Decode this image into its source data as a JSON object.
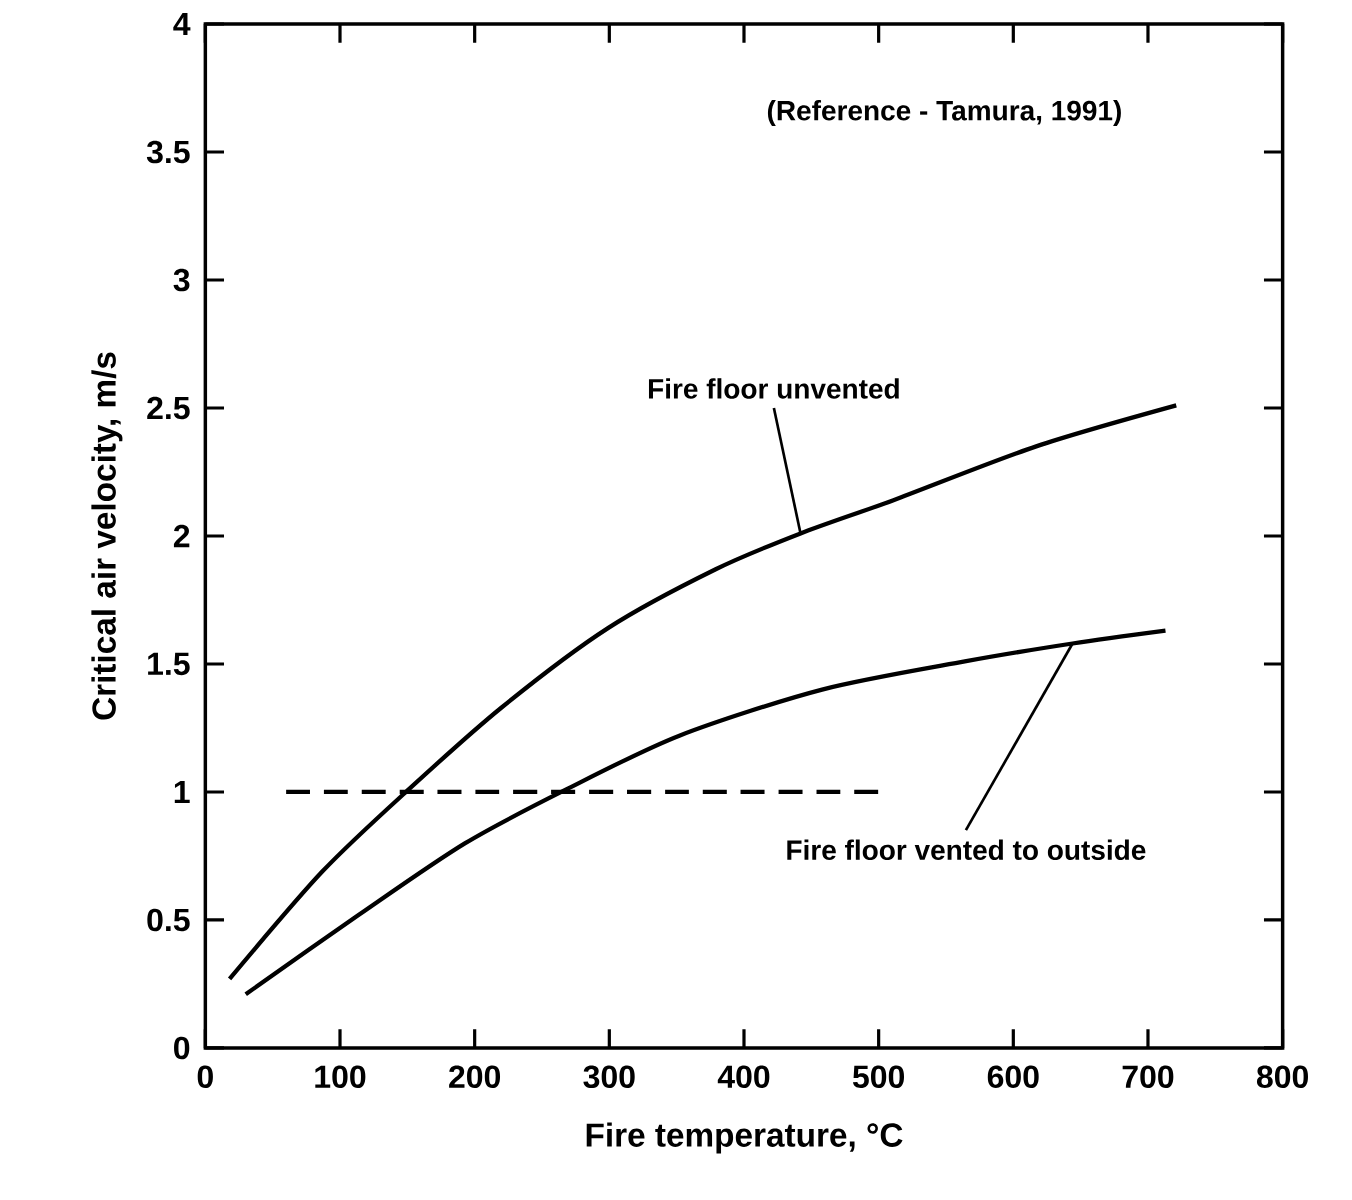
{
  "chart_data": {
    "type": "line",
    "xlabel": "Fire temperature, °C",
    "ylabel": "Critical air velocity, m/s",
    "xlim": [
      0,
      800
    ],
    "ylim": [
      0,
      4
    ],
    "xticks": [
      0,
      100,
      200,
      300,
      400,
      500,
      600,
      700,
      800
    ],
    "yticks": [
      0,
      0.5,
      1,
      1.5,
      2,
      2.5,
      3,
      3.5,
      4
    ],
    "grid": false,
    "marker": "none",
    "series": [
      {
        "color": "#000000",
        "line_style": "solid",
        "x": [
          18,
          87,
          151,
          220,
          299,
          379,
          442,
          511,
          617,
          721
        ],
        "values": [
          0.27,
          0.69,
          1.01,
          1.33,
          1.64,
          1.87,
          2.01,
          2.14,
          2.35,
          2.51
        ]
      },
      {
        "color": "#000000",
        "line_style": "solid",
        "x": [
          30,
          114,
          193,
          268,
          352,
          458,
          564,
          644,
          713
        ],
        "values": [
          0.21,
          0.52,
          0.8,
          1.01,
          1.22,
          1.4,
          1.51,
          1.58,
          1.63
        ]
      },
      {
        "color": "#000000",
        "line_style": "dashed",
        "x": [
          60,
          500
        ],
        "values": [
          1,
          1
        ]
      }
    ],
    "annotations": [
      "(Reference - Tamura, 1991)",
      {
        "text": "Fire floor unvented",
        "x": 442,
        "y": 2.01
      },
      {
        "text": "Fire floor vented to outside",
        "x": 644,
        "y": 1.58
      }
    ]
  }
}
